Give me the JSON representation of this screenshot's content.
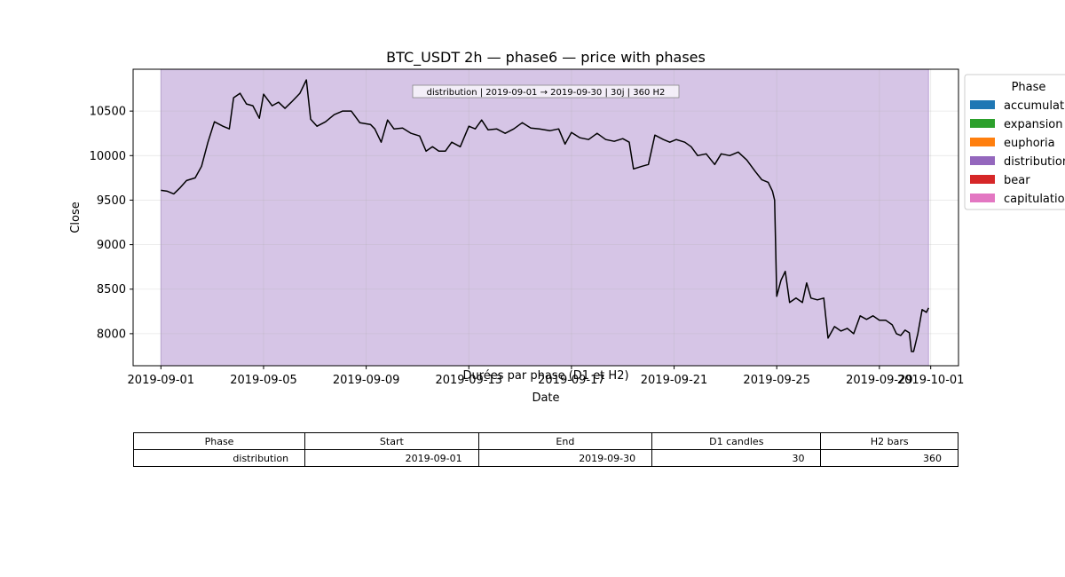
{
  "chart_data": {
    "type": "line",
    "title": "BTC_USDT 2h — phase6 — price with phases",
    "xlabel": "Date",
    "ylabel": "Close",
    "xlim": [
      "2019-08-30T22:00",
      "2019-10-02T02:00"
    ],
    "ylim": [
      7640,
      10970
    ],
    "yticks": [
      8000,
      8500,
      9000,
      9500,
      10000,
      10500
    ],
    "xticks": [
      "2019-09-01",
      "2019-09-05",
      "2019-09-09",
      "2019-09-13",
      "2019-09-17",
      "2019-09-21",
      "2019-09-25",
      "2019-09-29",
      "2019-10-01"
    ],
    "grid": true,
    "annotation": "distribution | 2019-09-01 → 2019-09-30 | 30j | 360 H2",
    "shaded_phase": {
      "phase": "distribution",
      "start": "2019-09-01",
      "end": "2019-09-30T22:00",
      "color": "#9467bd"
    },
    "legend": {
      "title": "Phase",
      "placement": "outside upper right",
      "items": [
        {
          "label": "accumulation",
          "color": "#1f77b4"
        },
        {
          "label": "expansion",
          "color": "#2ca02c"
        },
        {
          "label": "euphoria",
          "color": "#ff7f0e"
        },
        {
          "label": "distribution",
          "color": "#9467bd"
        },
        {
          "label": "bear",
          "color": "#d62728"
        },
        {
          "label": "capitulation",
          "color": "#e377c2"
        }
      ]
    },
    "series": [
      {
        "color": "#000000",
        "points": [
          [
            "2019-09-01T00:00",
            9610
          ],
          [
            "2019-09-01T06:00",
            9600
          ],
          [
            "2019-09-01T12:00",
            9570
          ],
          [
            "2019-09-01T18:00",
            9640
          ],
          [
            "2019-09-02T00:00",
            9720
          ],
          [
            "2019-09-02T08:00",
            9750
          ],
          [
            "2019-09-02T14:00",
            9880
          ],
          [
            "2019-09-02T20:00",
            10150
          ],
          [
            "2019-09-03T02:00",
            10380
          ],
          [
            "2019-09-03T10:00",
            10330
          ],
          [
            "2019-09-03T16:00",
            10300
          ],
          [
            "2019-09-03T20:00",
            10650
          ],
          [
            "2019-09-04T02:00",
            10700
          ],
          [
            "2019-09-04T08:00",
            10580
          ],
          [
            "2019-09-04T14:00",
            10560
          ],
          [
            "2019-09-04T20:00",
            10420
          ],
          [
            "2019-09-05T00:00",
            10690
          ],
          [
            "2019-09-05T08:00",
            10560
          ],
          [
            "2019-09-05T14:00",
            10600
          ],
          [
            "2019-09-05T20:00",
            10530
          ],
          [
            "2019-09-06T02:00",
            10600
          ],
          [
            "2019-09-06T10:00",
            10700
          ],
          [
            "2019-09-06T16:00",
            10850
          ],
          [
            "2019-09-06T20:00",
            10410
          ],
          [
            "2019-09-07T02:00",
            10330
          ],
          [
            "2019-09-07T10:00",
            10380
          ],
          [
            "2019-09-07T18:00",
            10460
          ],
          [
            "2019-09-08T02:00",
            10500
          ],
          [
            "2019-09-08T10:00",
            10500
          ],
          [
            "2019-09-08T18:00",
            10370
          ],
          [
            "2019-09-09T04:00",
            10350
          ],
          [
            "2019-09-09T08:00",
            10300
          ],
          [
            "2019-09-09T14:00",
            10150
          ],
          [
            "2019-09-09T20:00",
            10400
          ],
          [
            "2019-09-10T02:00",
            10300
          ],
          [
            "2019-09-10T10:00",
            10310
          ],
          [
            "2019-09-10T18:00",
            10250
          ],
          [
            "2019-09-11T02:00",
            10220
          ],
          [
            "2019-09-11T08:00",
            10050
          ],
          [
            "2019-09-11T14:00",
            10100
          ],
          [
            "2019-09-11T20:00",
            10050
          ],
          [
            "2019-09-12T02:00",
            10050
          ],
          [
            "2019-09-12T08:00",
            10150
          ],
          [
            "2019-09-12T16:00",
            10100
          ],
          [
            "2019-09-13T00:00",
            10330
          ],
          [
            "2019-09-13T06:00",
            10300
          ],
          [
            "2019-09-13T12:00",
            10400
          ],
          [
            "2019-09-13T18:00",
            10290
          ],
          [
            "2019-09-14T02:00",
            10300
          ],
          [
            "2019-09-14T10:00",
            10250
          ],
          [
            "2019-09-14T18:00",
            10300
          ],
          [
            "2019-09-15T02:00",
            10370
          ],
          [
            "2019-09-15T10:00",
            10310
          ],
          [
            "2019-09-15T18:00",
            10300
          ],
          [
            "2019-09-16T04:00",
            10280
          ],
          [
            "2019-09-16T12:00",
            10300
          ],
          [
            "2019-09-16T18:00",
            10130
          ],
          [
            "2019-09-17T00:00",
            10260
          ],
          [
            "2019-09-17T08:00",
            10200
          ],
          [
            "2019-09-17T16:00",
            10180
          ],
          [
            "2019-09-18T00:00",
            10250
          ],
          [
            "2019-09-18T08:00",
            10180
          ],
          [
            "2019-09-18T16:00",
            10160
          ],
          [
            "2019-09-19T00:00",
            10190
          ],
          [
            "2019-09-19T06:00",
            10150
          ],
          [
            "2019-09-19T10:00",
            9850
          ],
          [
            "2019-09-19T18:00",
            9880
          ],
          [
            "2019-09-20T00:00",
            9900
          ],
          [
            "2019-09-20T06:00",
            10230
          ],
          [
            "2019-09-20T14:00",
            10180
          ],
          [
            "2019-09-20T20:00",
            10150
          ],
          [
            "2019-09-21T02:00",
            10180
          ],
          [
            "2019-09-21T10:00",
            10150
          ],
          [
            "2019-09-21T16:00",
            10100
          ],
          [
            "2019-09-21T22:00",
            10000
          ],
          [
            "2019-09-22T06:00",
            10020
          ],
          [
            "2019-09-22T14:00",
            9900
          ],
          [
            "2019-09-22T20:00",
            10020
          ],
          [
            "2019-09-23T04:00",
            10000
          ],
          [
            "2019-09-23T12:00",
            10040
          ],
          [
            "2019-09-23T20:00",
            9950
          ],
          [
            "2019-09-24T04:00",
            9820
          ],
          [
            "2019-09-24T10:00",
            9730
          ],
          [
            "2019-09-24T16:00",
            9700
          ],
          [
            "2019-09-24T20:00",
            9600
          ],
          [
            "2019-09-24T22:00",
            9500
          ],
          [
            "2019-09-25T00:00",
            8420
          ],
          [
            "2019-09-25T04:00",
            8600
          ],
          [
            "2019-09-25T08:00",
            8700
          ],
          [
            "2019-09-25T12:00",
            8350
          ],
          [
            "2019-09-25T18:00",
            8400
          ],
          [
            "2019-09-26T00:00",
            8350
          ],
          [
            "2019-09-26T04:00",
            8570
          ],
          [
            "2019-09-26T08:00",
            8400
          ],
          [
            "2019-09-26T14:00",
            8380
          ],
          [
            "2019-09-26T20:00",
            8400
          ],
          [
            "2019-09-27T00:00",
            7950
          ],
          [
            "2019-09-27T06:00",
            8080
          ],
          [
            "2019-09-27T12:00",
            8030
          ],
          [
            "2019-09-27T18:00",
            8060
          ],
          [
            "2019-09-28T00:00",
            8000
          ],
          [
            "2019-09-28T06:00",
            8200
          ],
          [
            "2019-09-28T12:00",
            8160
          ],
          [
            "2019-09-28T18:00",
            8200
          ],
          [
            "2019-09-29T00:00",
            8150
          ],
          [
            "2019-09-29T06:00",
            8150
          ],
          [
            "2019-09-29T12:00",
            8100
          ],
          [
            "2019-09-29T16:00",
            8000
          ],
          [
            "2019-09-29T20:00",
            7980
          ],
          [
            "2019-09-30T00:00",
            8040
          ],
          [
            "2019-09-30T04:00",
            8010
          ],
          [
            "2019-09-30T06:00",
            7800
          ],
          [
            "2019-09-30T08:00",
            7800
          ],
          [
            "2019-09-30T12:00",
            8000
          ],
          [
            "2019-09-30T16:00",
            8270
          ],
          [
            "2019-09-30T20:00",
            8240
          ],
          [
            "2019-09-30T22:00",
            8290
          ]
        ]
      }
    ]
  },
  "table": {
    "overlay_title": "Durées par phase (D1 et H2)",
    "headers": [
      "Phase",
      "Start",
      "End",
      "D1 candles",
      "H2 bars"
    ],
    "rows": [
      [
        "distribution",
        "2019-09-01",
        "2019-09-30",
        "30",
        "360"
      ]
    ]
  }
}
